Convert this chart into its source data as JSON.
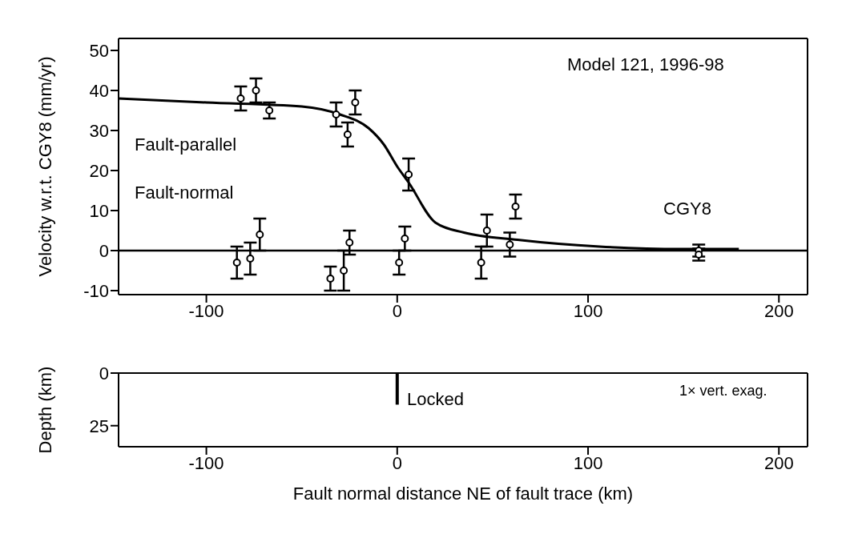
{
  "chart_data": [
    {
      "type": "scatter",
      "xlim": [
        -146,
        215
      ],
      "xticks": [
        -100,
        0,
        100,
        200
      ],
      "ylim": [
        -11,
        53
      ],
      "yticks": [
        -10,
        0,
        10,
        20,
        30,
        40,
        50
      ],
      "ylabel": "Velocity w.r.t. CGY8 (mm/yr)",
      "marker": "circle",
      "annotations": [
        "Model 121, 1996-98",
        "CGY8"
      ],
      "ref_lines": [
        {
          "axis": "y",
          "value": 0,
          "color": "#000000"
        }
      ],
      "series": [
        {
          "name": "Fault-parallel",
          "color": "#000000",
          "x": [
            -82,
            -74,
            -67,
            -32,
            -26,
            -22,
            6,
            47,
            62,
            158
          ],
          "values": [
            38,
            40,
            35,
            34,
            29,
            37,
            19,
            5,
            11,
            0
          ],
          "errors": [
            3,
            3,
            2,
            3,
            3,
            3,
            4,
            4,
            3,
            1.5
          ]
        },
        {
          "name": "Fault-normal",
          "color": "#000000",
          "x": [
            -84,
            -77,
            -72,
            -35,
            -28,
            -25,
            1,
            4,
            44,
            59,
            158
          ],
          "values": [
            -3,
            -2,
            4,
            -7,
            -5,
            2,
            -3,
            3,
            -3,
            1.5,
            -1
          ],
          "errors": [
            4,
            4,
            4,
            3,
            5,
            3,
            3,
            3,
            4,
            3,
            1.5
          ]
        },
        {
          "type": "line",
          "marker": "none",
          "color": "#000000",
          "x": [
            -146,
            -100,
            -50,
            -30,
            -15,
            -7,
            0,
            6,
            20,
            35,
            63,
            106,
            149,
            179
          ],
          "values": [
            38,
            37,
            36,
            34,
            30.6,
            26.5,
            21,
            17,
            7,
            4.5,
            2.7,
            1,
            0.4,
            0.4
          ]
        }
      ]
    },
    {
      "type": "line",
      "xlim": [
        -146,
        215
      ],
      "xticks": [
        -100,
        0,
        100,
        200
      ],
      "ylim": [
        35,
        0
      ],
      "yticks": [
        0,
        25
      ],
      "xlabel": "Fault normal distance NE of fault trace (km)",
      "ylabel": "Depth (km)",
      "annotations": [
        "Locked",
        "1× vert. exag."
      ],
      "series": [
        {
          "color": "#000000",
          "x": [
            0,
            0
          ],
          "values": [
            0,
            15
          ]
        }
      ]
    }
  ]
}
